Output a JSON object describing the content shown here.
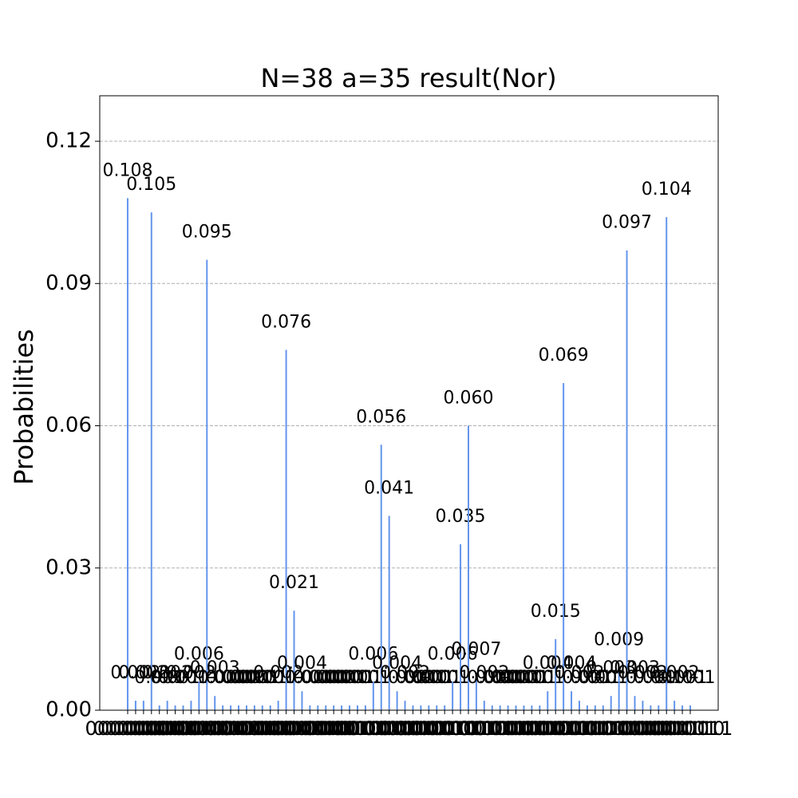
{
  "chart_data": {
    "type": "bar",
    "title": "N=38 a=35 result(Nor)",
    "ylabel": "Probabilities",
    "color": "#6495ed",
    "grid": true,
    "ylim": [
      0,
      0.1296
    ],
    "yticks": [
      {
        "value": 0,
        "label": "0.00"
      },
      {
        "value": 0.03,
        "label": "0.03"
      },
      {
        "value": 0.06,
        "label": "0.06"
      },
      {
        "value": 0.09,
        "label": "0.09"
      },
      {
        "value": 0.12,
        "label": "0.12"
      }
    ],
    "categories": [
      "0000000",
      "0000001",
      "0000010",
      "0000011",
      "0000100",
      "0000101",
      "0000110",
      "0000111",
      "0001000",
      "0001001",
      "0001010",
      "0001011",
      "0001100",
      "0001101",
      "0001110",
      "0001111",
      "0010000",
      "0010001",
      "0010010",
      "0010011",
      "0010100",
      "0010101",
      "0010110",
      "0010111",
      "0011000",
      "0011001",
      "0011010",
      "0011011",
      "0011100",
      "0011101",
      "0011110",
      "0011111",
      "0100000",
      "0100001",
      "0100010",
      "0100011",
      "0100100",
      "0100101",
      "0100110",
      "0100111",
      "0101000",
      "0101001",
      "0101010",
      "0101011",
      "0101100",
      "0101101",
      "0101110",
      "0101111",
      "0110000",
      "0110001",
      "0110010",
      "0110011",
      "0110100",
      "0110101",
      "0110110",
      "0110111",
      "0111000",
      "0111001",
      "0111010",
      "0111011",
      "0111100",
      "0111101",
      "0111110",
      "0111111",
      "1000000",
      "1000001",
      "1000010",
      "1000011",
      "1000100",
      "1000101",
      "1000110",
      "1000111"
    ],
    "values": [
      0.108,
      0.002,
      0.002,
      0.105,
      0.001,
      0.002,
      0.001,
      0.001,
      0.002,
      0.006,
      0.095,
      0.003,
      0.001,
      0.001,
      0.001,
      0.001,
      0.001,
      0.001,
      0.001,
      0.002,
      0.076,
      0.021,
      0.004,
      0.001,
      0.001,
      0.001,
      0.001,
      0.001,
      0.001,
      0.001,
      0.001,
      0.006,
      0.056,
      0.041,
      0.004,
      0.002,
      0.001,
      0.001,
      0.001,
      0.001,
      0.001,
      0.006,
      0.035,
      0.06,
      0.007,
      0.002,
      0.001,
      0.001,
      0.001,
      0.001,
      0.001,
      0.001,
      0.001,
      0.004,
      0.015,
      0.069,
      0.004,
      0.002,
      0.001,
      0.001,
      0.001,
      0.003,
      0.009,
      0.097,
      0.003,
      0.002,
      0.001,
      0.001,
      0.104,
      0.002,
      0.001,
      0.001
    ],
    "value_labels": [
      "0.108",
      "0.002",
      "0.002",
      "0.105",
      "0.001",
      "0.002",
      "0.001",
      "0.001",
      "0.002",
      "0.006",
      "0.095",
      "0.003",
      "0.001",
      "0.001",
      "0.001",
      "0.001",
      "0.001",
      "0.001",
      "0.001",
      "0.002",
      "0.076",
      "0.021",
      "0.004",
      "0.001",
      "0.001",
      "0.001",
      "0.001",
      "0.001",
      "0.001",
      "0.001",
      "0.001",
      "0.006",
      "0.056",
      "0.041",
      "0.004",
      "0.002",
      "0.001",
      "0.001",
      "0.001",
      "0.001",
      "0.001",
      "0.006",
      "0.035",
      "0.060",
      "0.007",
      "0.002",
      "0.001",
      "0.001",
      "0.001",
      "0.001",
      "0.001",
      "0.001",
      "0.001",
      "0.004",
      "0.015",
      "0.069",
      "0.004",
      "0.002",
      "0.001",
      "0.001",
      "0.001",
      "0.003",
      "0.009",
      "0.097",
      "0.003",
      "0.002",
      "0.001",
      "0.001",
      "0.104",
      "0.002",
      "0.001",
      "0.001"
    ]
  }
}
